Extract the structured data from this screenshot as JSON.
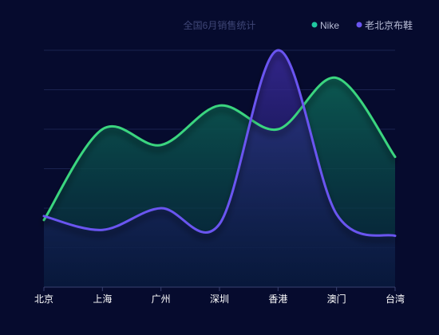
{
  "chart_data": {
    "type": "area",
    "title": "全国6月销售统计",
    "categories": [
      "北京",
      "上海",
      "广州",
      "深圳",
      "香港",
      "澳门",
      "台湾"
    ],
    "ylim": [
      0,
      6
    ],
    "grid": true,
    "legend_position": "top-right",
    "series": [
      {
        "name": "Nike",
        "values": [
          1.7,
          4.0,
          3.6,
          4.6,
          4.0,
          5.3,
          3.3
        ],
        "color": "#3ad57f",
        "marker_color": "#20c9a0"
      },
      {
        "name": "老北京布鞋",
        "values": [
          1.8,
          1.45,
          2.0,
          1.6,
          6.0,
          1.85,
          1.3
        ],
        "color": "#6a55f0",
        "marker_color": "#6a55f0"
      }
    ]
  },
  "colors": {
    "background": "#060b2e",
    "grid": "#1b2350",
    "axis": "#3a4170"
  }
}
